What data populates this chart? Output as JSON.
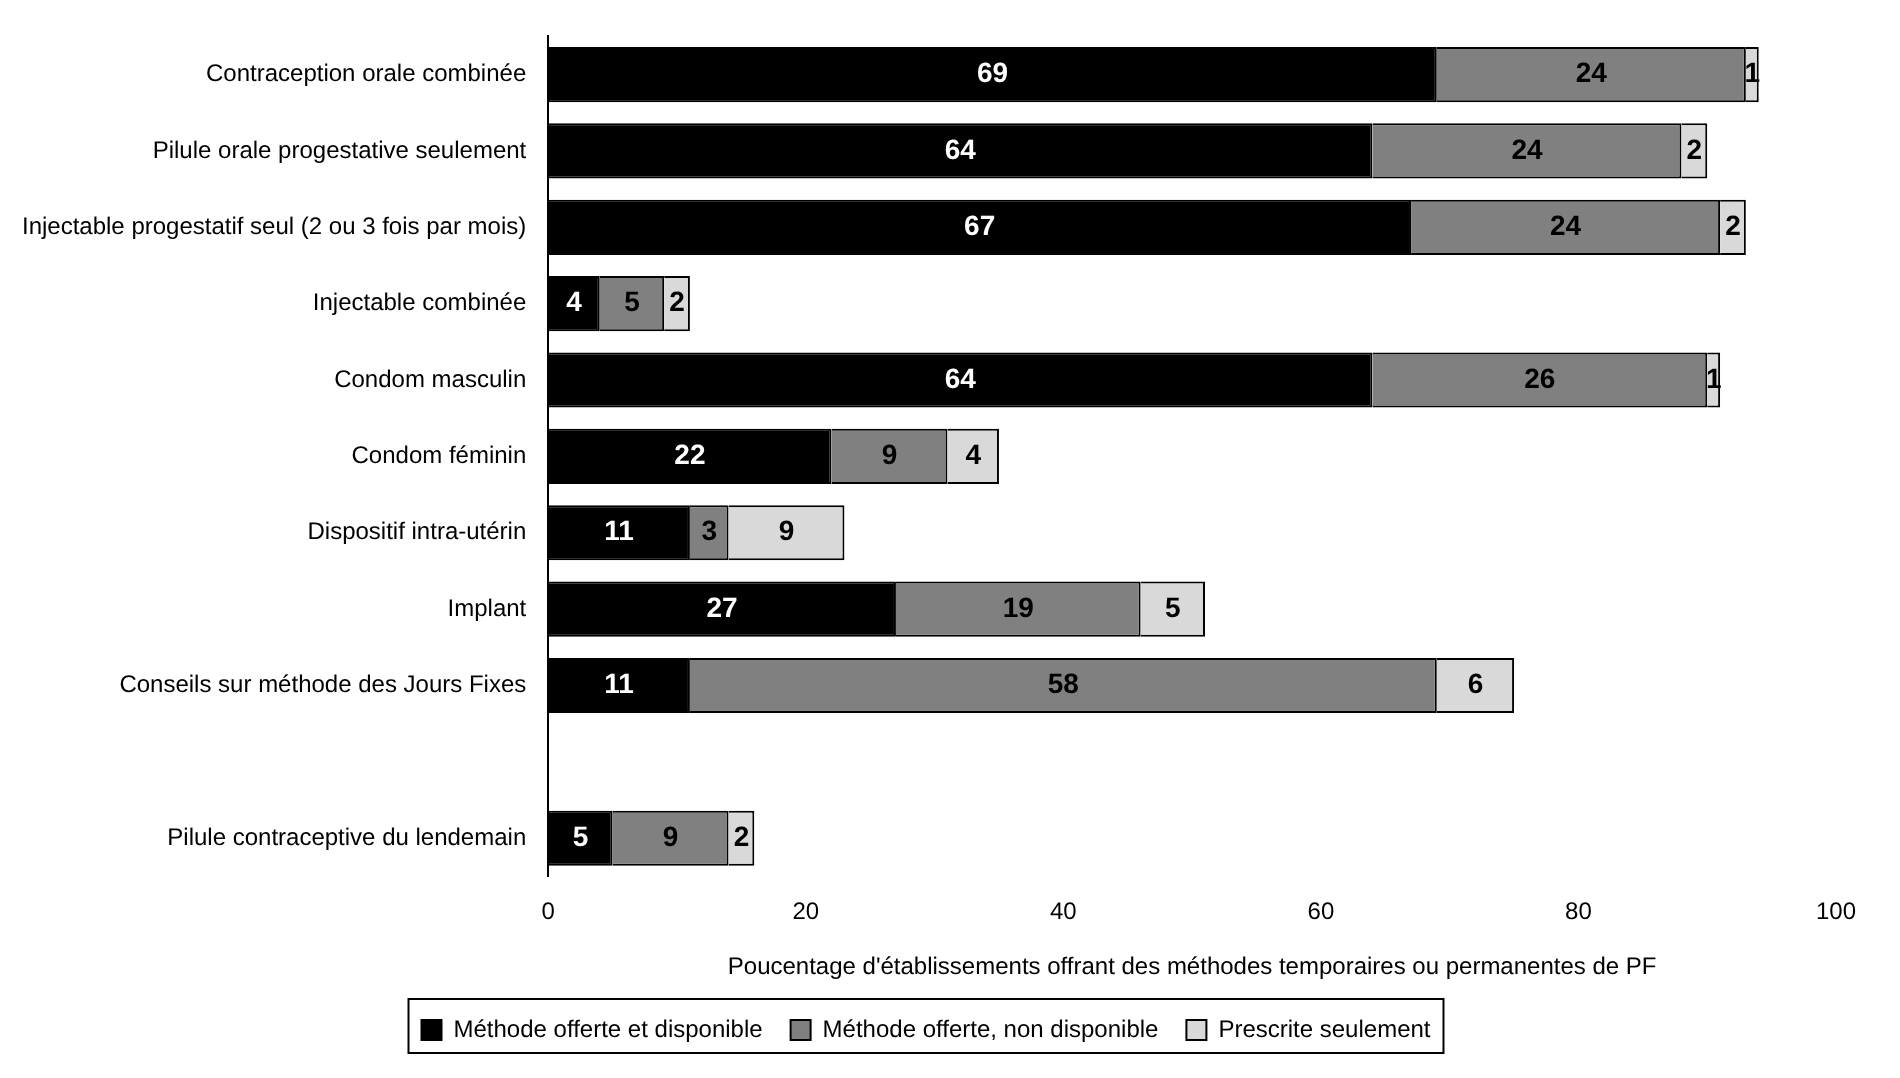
{
  "chart_data": {
    "type": "bar",
    "orientation": "horizontal",
    "stacked": true,
    "xlabel": "Poucentage d'établissements offrant des méthodes temporaires ou permanentes de PF",
    "categories": [
      "Contraception orale combinée",
      "Pilule orale progestative seulement",
      "Injectable progestatif seul (2 ou 3 fois par mois)",
      "Injectable combinée",
      "Condom masculin",
      "Condom féminin",
      "Dispositif intra-utérin",
      "Implant",
      "Conseils sur méthode des Jours Fixes",
      null,
      "Pilule contraceptive du lendemain"
    ],
    "series": [
      {
        "name": "Méthode offerte et disponible",
        "color": "#000000",
        "values": [
          69,
          64,
          67,
          4,
          64,
          22,
          11,
          27,
          11,
          null,
          5
        ]
      },
      {
        "name": "Méthode offerte, non disponible",
        "color": "#808080",
        "values": [
          24,
          24,
          24,
          5,
          26,
          9,
          3,
          19,
          58,
          null,
          9
        ]
      },
      {
        "name": "Prescrite seulement",
        "color": "#d9d9d9",
        "values": [
          1,
          2,
          2,
          2,
          1,
          4,
          9,
          5,
          6,
          null,
          2
        ]
      }
    ],
    "xlim": [
      0,
      100
    ],
    "xticks": [
      0,
      20,
      40,
      60,
      80,
      100
    ],
    "grid": false,
    "legend": "bottom",
    "data_labels": true
  }
}
